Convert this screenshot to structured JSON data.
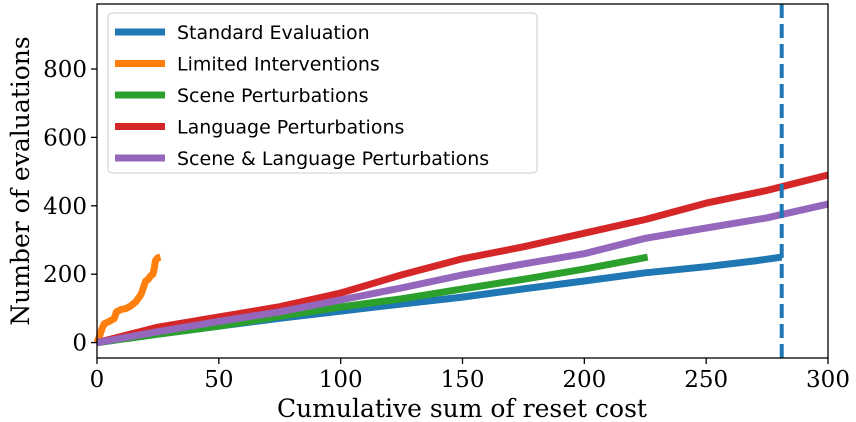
{
  "chart_data": {
    "type": "line",
    "xlabel": "Cumulative sum of reset cost",
    "ylabel": "Number of evaluations",
    "xlim": [
      0,
      300
    ],
    "ylim": [
      -45,
      990
    ],
    "xticks": [
      0,
      50,
      100,
      150,
      200,
      250,
      300
    ],
    "yticks": [
      0,
      200,
      400,
      600,
      800
    ],
    "xtick_labels": [
      "0",
      "50",
      "100",
      "150",
      "200",
      "250",
      "300"
    ],
    "ytick_labels": [
      "0",
      "200",
      "400",
      "600",
      "800"
    ],
    "grid": false,
    "legend_position": "top-left",
    "reference_lines": [
      {
        "orientation": "vertical",
        "x": 281,
        "style": "dashed",
        "color": "#1f77b4"
      }
    ],
    "series": [
      {
        "name": "Standard Evaluation",
        "color": "#1f77b4",
        "x": [
          0,
          25,
          50,
          75,
          100,
          125,
          150,
          175,
          200,
          225,
          250,
          270,
          281
        ],
        "y": [
          0,
          25,
          48,
          71,
          92,
          113,
          133,
          157,
          180,
          204,
          222,
          239,
          250
        ]
      },
      {
        "name": "Limited Interventions",
        "color": "#ff7f0e",
        "x": [
          0,
          1,
          2,
          3,
          5,
          7,
          8,
          10,
          12,
          14,
          16,
          17,
          18,
          19,
          20,
          21,
          22,
          23,
          23.5,
          24,
          25,
          26
        ],
        "y": [
          0,
          18,
          40,
          55,
          62,
          70,
          90,
          97,
          100,
          108,
          120,
          130,
          140,
          160,
          180,
          185,
          195,
          200,
          218,
          240,
          248,
          250
        ]
      },
      {
        "name": "Scene Perturbations",
        "color": "#2ca02c",
        "x": [
          0,
          25,
          50,
          75,
          100,
          125,
          150,
          175,
          200,
          226
        ],
        "y": [
          0,
          25,
          48,
          77,
          104,
          128,
          157,
          185,
          215,
          250
        ]
      },
      {
        "name": "Language Perturbations",
        "color": "#d62728",
        "x": [
          0,
          25,
          50,
          75,
          100,
          125,
          150,
          175,
          200,
          225,
          250,
          275,
          300
        ],
        "y": [
          0,
          45,
          75,
          105,
          145,
          198,
          245,
          280,
          320,
          360,
          408,
          445,
          490
        ]
      },
      {
        "name": "Scene & Language Perturbations",
        "color": "#9467bd",
        "x": [
          0,
          25,
          50,
          75,
          100,
          125,
          150,
          175,
          200,
          225,
          250,
          275,
          300
        ],
        "y": [
          0,
          32,
          62,
          90,
          125,
          160,
          198,
          230,
          260,
          305,
          335,
          365,
          405
        ]
      }
    ]
  }
}
